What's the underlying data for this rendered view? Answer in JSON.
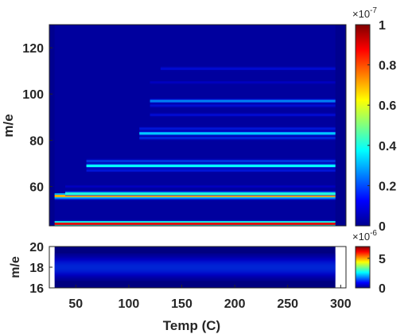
{
  "chart_data": [
    {
      "type": "heatmap",
      "title": "",
      "xlabel": "",
      "ylabel": "m/e",
      "xlim": [
        25,
        305
      ],
      "ylim": [
        43,
        130
      ],
      "y_ticks": [
        60,
        80,
        100,
        120
      ],
      "x_range_data": [
        30,
        295
      ],
      "background_level": 0.03,
      "colorbar": {
        "min": 0,
        "max": 1,
        "exponent_label": "×10^-7",
        "ticks": [
          "0",
          "0.2",
          "0.4",
          "0.6",
          "0.8",
          "1"
        ]
      },
      "bands": [
        {
          "mz": 44,
          "level": 1.0,
          "t_start": 30,
          "t_end": 295
        },
        {
          "mz": 55,
          "level": 0.25,
          "t_start": 30,
          "t_end": 295
        },
        {
          "mz": 56,
          "level": 0.78,
          "t_start": 30,
          "t_end": 295
        },
        {
          "mz": 57,
          "level": 0.45,
          "t_start": 40,
          "t_end": 295
        },
        {
          "mz": 60,
          "level": 0.12,
          "t_start": 40,
          "t_end": 295
        },
        {
          "mz": 67,
          "level": 0.18,
          "t_start": 60,
          "t_end": 295
        },
        {
          "mz": 69,
          "level": 0.42,
          "t_start": 60,
          "t_end": 295
        },
        {
          "mz": 71,
          "level": 0.22,
          "t_start": 60,
          "t_end": 295
        },
        {
          "mz": 81,
          "level": 0.2,
          "t_start": 110,
          "t_end": 295
        },
        {
          "mz": 83,
          "level": 0.36,
          "t_start": 110,
          "t_end": 295
        },
        {
          "mz": 85,
          "level": 0.18,
          "t_start": 110,
          "t_end": 295
        },
        {
          "mz": 91,
          "level": 0.16,
          "t_start": 120,
          "t_end": 295
        },
        {
          "mz": 95,
          "level": 0.16,
          "t_start": 120,
          "t_end": 295
        },
        {
          "mz": 97,
          "level": 0.3,
          "t_start": 120,
          "t_end": 295
        },
        {
          "mz": 105,
          "level": 0.12,
          "t_start": 120,
          "t_end": 295
        },
        {
          "mz": 111,
          "level": 0.16,
          "t_start": 130,
          "t_end": 295
        }
      ]
    },
    {
      "type": "heatmap",
      "title": "",
      "xlabel": "Temp (C)",
      "ylabel": "m/e",
      "xlim": [
        25,
        305
      ],
      "ylim": [
        16,
        20
      ],
      "y_ticks": [
        16,
        18,
        20
      ],
      "x_ticks": [
        50,
        100,
        150,
        200,
        250,
        300
      ],
      "x_range_data": [
        30,
        295
      ],
      "background_level": 0.0,
      "colorbar": {
        "min": 0,
        "max": 7,
        "exponent_label": "×10^-6",
        "ticks": [
          "0",
          "5"
        ]
      },
      "bands": [
        {
          "mz": 18,
          "level": 0.18,
          "t_start": 30,
          "t_end": 295,
          "sigma": 0.9
        }
      ]
    }
  ]
}
